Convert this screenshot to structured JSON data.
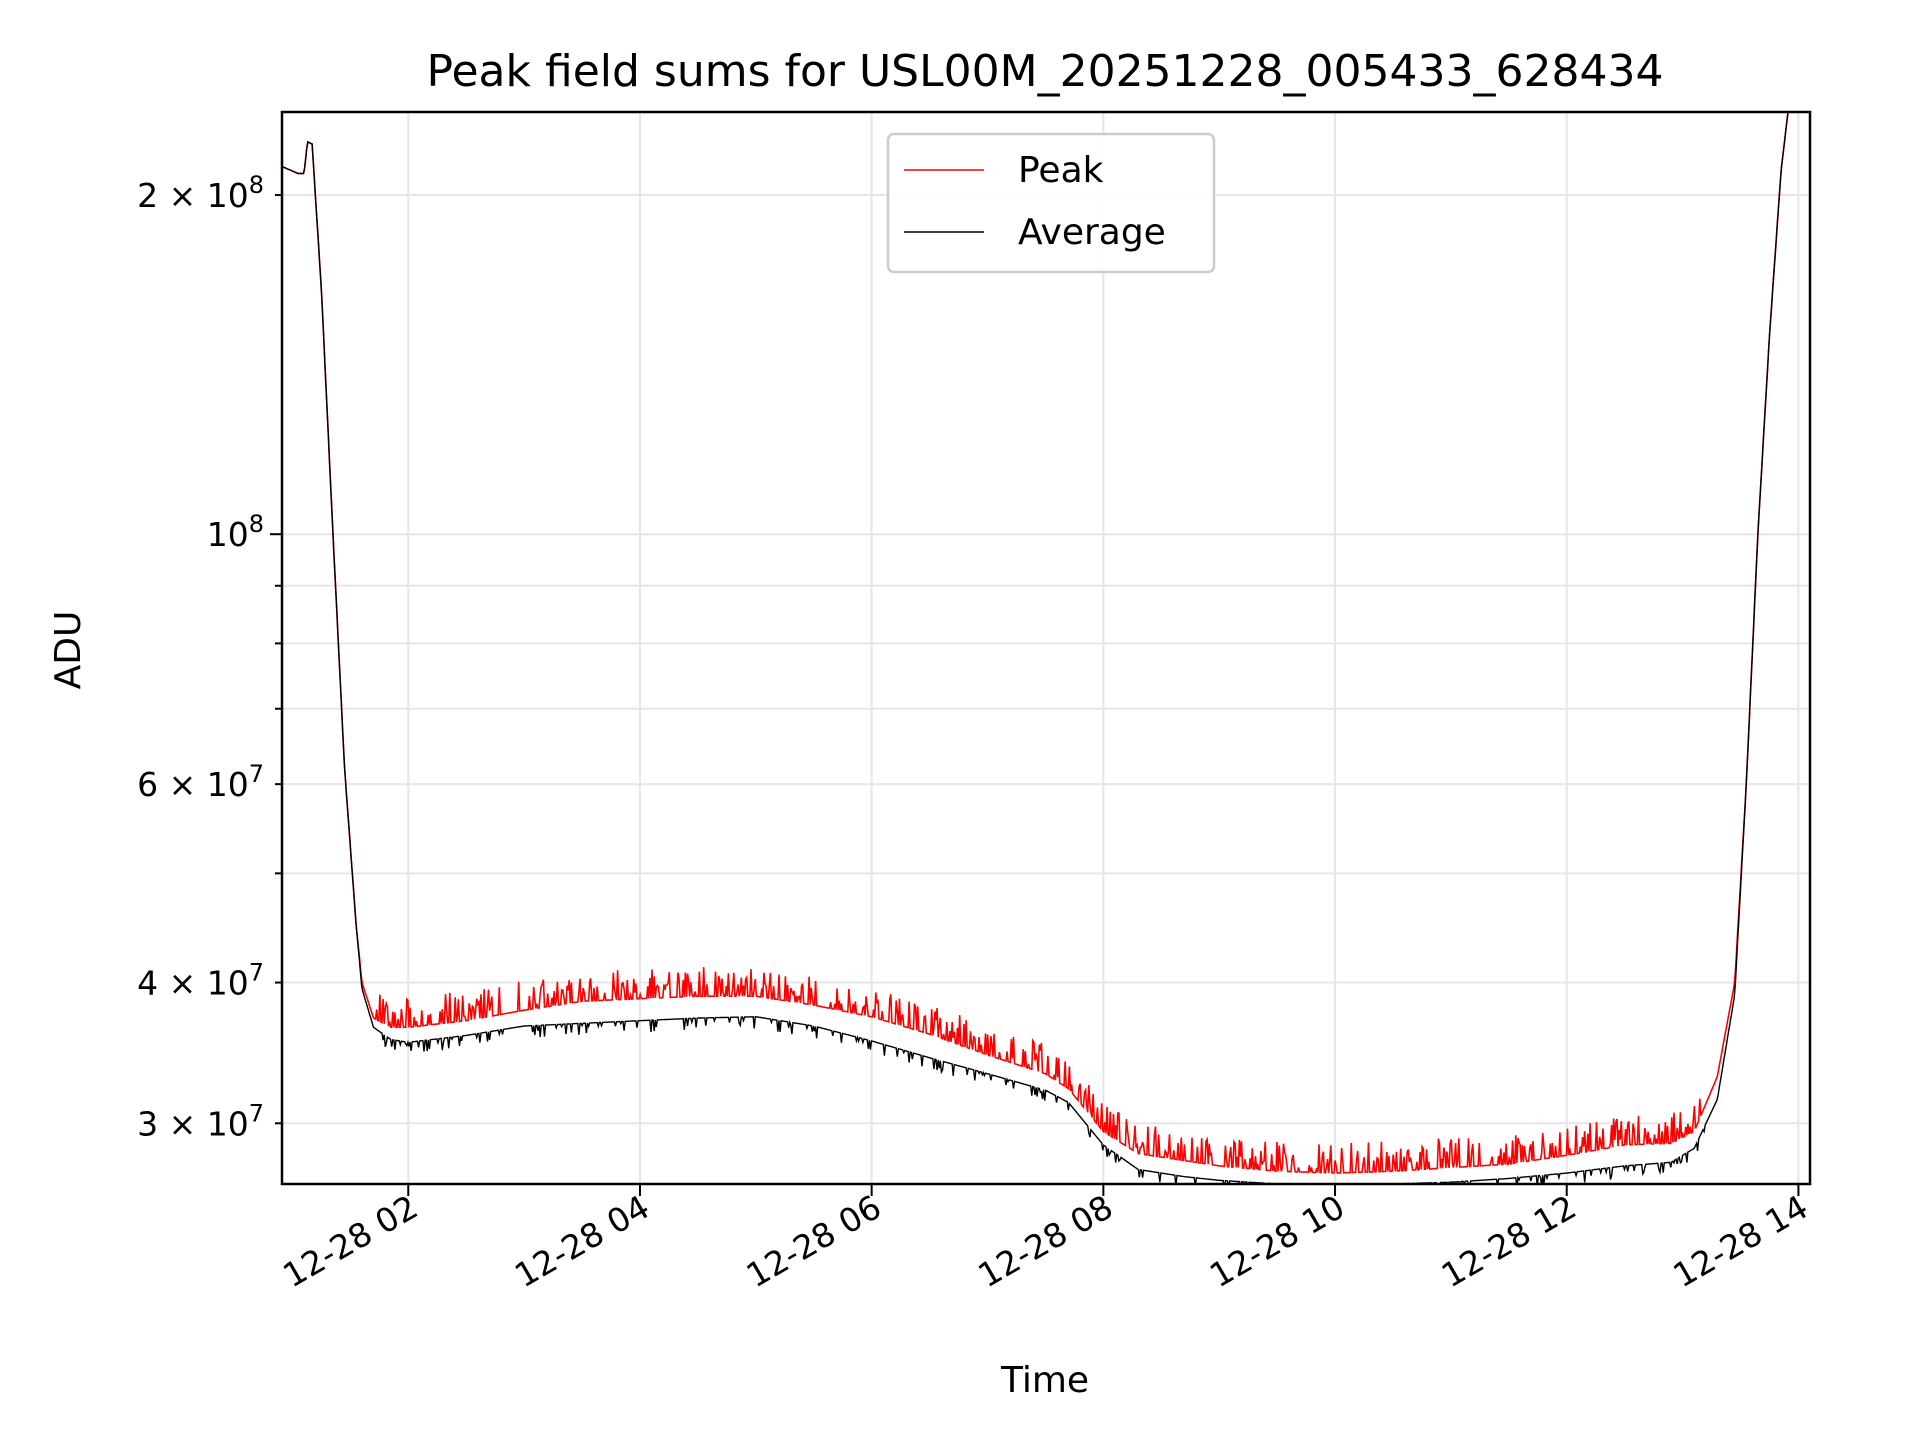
{
  "chart_data": {
    "type": "line",
    "title": "Peak field sums for USL00M_20251228_005433_628434",
    "xlabel": "Time",
    "ylabel": "ADU",
    "yscale": "log",
    "xlim": [
      0.91,
      14.1
    ],
    "ylim": [
      26500000,
      237000000
    ],
    "grid": true,
    "legend_position": "top-center",
    "x_ticks": [
      {
        "value": 2,
        "label": "12-28 02"
      },
      {
        "value": 4,
        "label": "12-28 04"
      },
      {
        "value": 6,
        "label": "12-28 06"
      },
      {
        "value": 8,
        "label": "12-28 08"
      },
      {
        "value": 10,
        "label": "12-28 10"
      },
      {
        "value": 12,
        "label": "12-28 12"
      },
      {
        "value": 14,
        "label": "12-28 14"
      }
    ],
    "y_ticks_major": [
      {
        "value": 100000000,
        "mant": "10",
        "exp": "8"
      }
    ],
    "y_ticks_minor": [
      {
        "value": 30000000,
        "mant": "3 × 10",
        "exp": "7"
      },
      {
        "value": 40000000,
        "mant": "4 × 10",
        "exp": "7"
      },
      {
        "value": 50000000,
        "mant": "",
        "exp": ""
      },
      {
        "value": 60000000,
        "mant": "6 × 10",
        "exp": "7"
      },
      {
        "value": 70000000,
        "mant": "",
        "exp": ""
      },
      {
        "value": 80000000,
        "mant": "",
        "exp": ""
      },
      {
        "value": 90000000,
        "mant": "",
        "exp": ""
      },
      {
        "value": 200000000,
        "mant": "2 × 10",
        "exp": "8"
      }
    ],
    "series": [
      {
        "name": "Peak",
        "color": "#ff0000",
        "x": [
          0.91,
          1.05,
          1.1,
          1.13,
          1.17,
          1.25,
          1.35,
          1.45,
          1.55,
          1.6,
          1.7,
          1.85,
          2.0,
          2.5,
          3.0,
          3.5,
          4.0,
          4.5,
          5.0,
          5.5,
          6.0,
          6.5,
          7.0,
          7.5,
          7.7,
          8.0,
          8.3,
          8.7,
          9.0,
          9.5,
          10.0,
          10.5,
          11.0,
          11.5,
          12.0,
          12.5,
          12.9,
          13.1,
          13.3,
          13.45,
          13.55,
          13.65,
          13.75,
          13.85,
          13.91
        ],
        "y": [
          212000000,
          209000000,
          209000000,
          223000000,
          222000000,
          165000000,
          100000000,
          62000000,
          45000000,
          40000000,
          37200000,
          36500000,
          36500000,
          37000000,
          37800000,
          38500000,
          38700000,
          38900000,
          38900000,
          38200000,
          37300000,
          36000000,
          34500000,
          33200000,
          32200000,
          29500000,
          28200000,
          27800000,
          27500000,
          27200000,
          27100000,
          27200000,
          27400000,
          27600000,
          28100000,
          28700000,
          28800000,
          29500000,
          33000000,
          40000000,
          60000000,
          100000000,
          150000000,
          210000000,
          237000000
        ]
      },
      {
        "name": "Average",
        "color": "#000000",
        "x": [
          0.91,
          1.05,
          1.1,
          1.13,
          1.17,
          1.25,
          1.35,
          1.45,
          1.55,
          1.6,
          1.7,
          1.85,
          2.0,
          2.5,
          3.0,
          3.5,
          4.0,
          4.5,
          5.0,
          5.5,
          6.0,
          6.5,
          7.0,
          7.5,
          7.7,
          8.0,
          8.3,
          8.7,
          9.0,
          9.5,
          10.0,
          10.5,
          11.0,
          11.5,
          12.0,
          12.5,
          12.9,
          13.1,
          13.3,
          13.45,
          13.55,
          13.65,
          13.75,
          13.85,
          13.91
        ],
        "y": [
          212000000,
          209000000,
          209000000,
          223000000,
          222000000,
          165000000,
          100000000,
          62000000,
          45000000,
          39500000,
          36500000,
          35600000,
          35400000,
          35900000,
          36600000,
          36800000,
          37000000,
          37200000,
          37300000,
          36600000,
          35500000,
          34300000,
          33200000,
          32100000,
          31300000,
          28700000,
          27300000,
          26900000,
          26700000,
          26500000,
          26400000,
          26500000,
          26600000,
          26800000,
          27100000,
          27500000,
          27700000,
          28500000,
          31500000,
          39000000,
          60000000,
          100000000,
          150000000,
          210000000,
          237000000
        ]
      }
    ]
  }
}
